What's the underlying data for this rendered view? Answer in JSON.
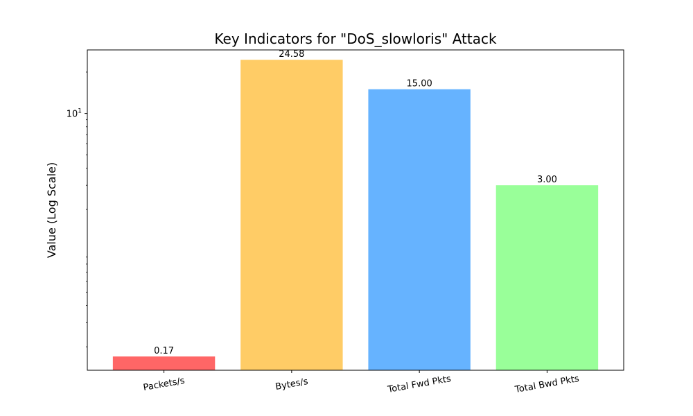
{
  "chart_data": {
    "type": "bar",
    "title": "Key Indicators for \"DoS_slowloris\" Attack",
    "xlabel": "",
    "ylabel": "Value (Log Scale)",
    "yscale": "log",
    "ylim": [
      0.135,
      29.0
    ],
    "yticks": [
      {
        "value": 10,
        "base": "10",
        "exponent": "1"
      }
    ],
    "categories": [
      "Packets/s",
      "Bytes/s",
      "Total Fwd Pkts",
      "Total Bwd Pkts"
    ],
    "values": [
      0.17,
      24.58,
      15.0,
      3.0
    ],
    "value_labels": [
      "0.17",
      "24.58",
      "15.00",
      "3.00"
    ],
    "colors": [
      "#ff6666",
      "#ffcc66",
      "#66b3ff",
      "#99ff99"
    ],
    "grid": false,
    "legend": "none"
  }
}
